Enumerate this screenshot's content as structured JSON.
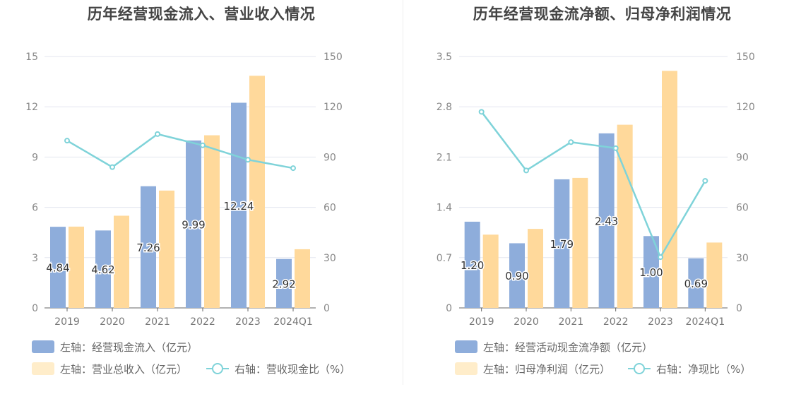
{
  "colors": {
    "bar1": "#8eaddb",
    "bar2": "#ffd99b",
    "line": "#7fd3d9",
    "legend_bar2": "#ffedca"
  },
  "chart_data": [
    {
      "type": "bar",
      "title": "历年经营现金流入、营业收入情况",
      "categories": [
        "2019",
        "2020",
        "2021",
        "2022",
        "2023",
        "2024Q1"
      ],
      "y_left": {
        "ticks": [
          "0",
          "3",
          "6",
          "9",
          "12",
          "15"
        ],
        "ylim": [
          0,
          15
        ]
      },
      "y_right": {
        "ticks": [
          "0",
          "30",
          "60",
          "90",
          "120",
          "150"
        ],
        "ylim": [
          0,
          150
        ]
      },
      "series": [
        {
          "name": "左轴：经营现金流入（亿元）",
          "type": "bar",
          "axis": "left",
          "values": [
            4.84,
            4.62,
            7.26,
            9.99,
            12.24,
            2.92
          ],
          "labels": [
            "4.84",
            "4.62",
            "7.26",
            "9.99",
            "12.24",
            "2.92"
          ]
        },
        {
          "name": "左轴：营业总收入（亿元）",
          "type": "bar",
          "axis": "left",
          "values": [
            4.85,
            5.5,
            7.0,
            10.3,
            13.85,
            3.5
          ]
        },
        {
          "name": "右轴：营收现金比（%）",
          "type": "line",
          "axis": "right",
          "values": [
            99.8,
            84.0,
            103.7,
            97.0,
            88.4,
            83.4
          ]
        }
      ]
    },
    {
      "type": "bar",
      "title": "历年经营现金流净额、归母净利润情况",
      "categories": [
        "2019",
        "2020",
        "2021",
        "2022",
        "2023",
        "2024Q1"
      ],
      "y_left": {
        "ticks": [
          "0",
          "0.7",
          "1.4",
          "2.1",
          "2.8",
          "3.5"
        ],
        "ylim": [
          0,
          3.5
        ]
      },
      "y_right": {
        "ticks": [
          "0",
          "30",
          "60",
          "90",
          "120",
          "150"
        ],
        "ylim": [
          0,
          150
        ]
      },
      "series": [
        {
          "name": "左轴：经营活动现金流净额（亿元）",
          "type": "bar",
          "axis": "left",
          "values": [
            1.2,
            0.9,
            1.79,
            2.43,
            1.0,
            0.69
          ],
          "labels": [
            "1.20",
            "0.90",
            "1.79",
            "2.43",
            "1.00",
            "0.69"
          ]
        },
        {
          "name": "左轴：归母净利润（亿元）",
          "type": "bar",
          "axis": "left",
          "values": [
            1.02,
            1.1,
            1.81,
            2.55,
            3.3,
            0.91
          ]
        },
        {
          "name": "右轴：净现比（%）",
          "type": "line",
          "axis": "right",
          "values": [
            117.0,
            82.0,
            98.9,
            95.3,
            30.3,
            75.8
          ]
        }
      ]
    }
  ]
}
